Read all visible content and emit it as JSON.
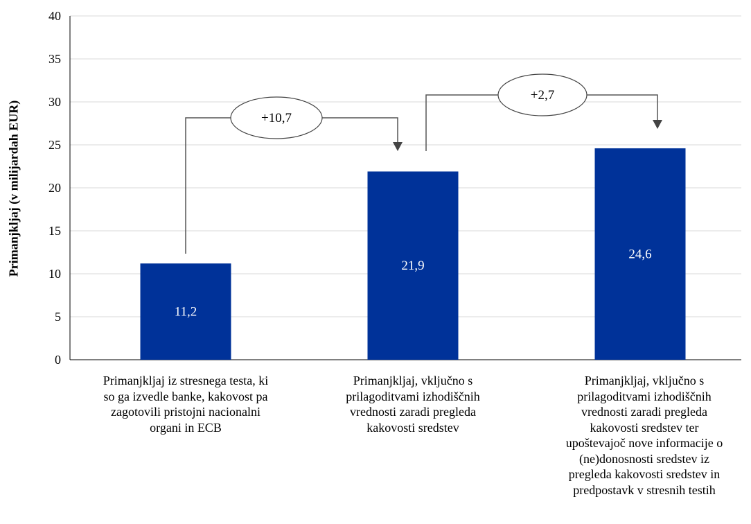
{
  "chart_data": {
    "type": "bar",
    "ylabel": "Primanjkljaj (v milijardah EUR)",
    "ylim": [
      0,
      40
    ],
    "yticks": [
      0,
      5,
      10,
      15,
      20,
      25,
      30,
      35,
      40
    ],
    "grid": true,
    "categories": [
      "Primanjkljaj iz stresnega testa, ki so ga izvedle banke, kakovost pa zagotovili pristojni nacionalni organi in ECB",
      "Primanjkljaj, vključno s prilagoditvami izhodiščnih vrednosti zaradi pregleda kakovosti sredstev",
      "Primanjkljaj, vključno s prilagoditvami izhodiščnih vrednosti zaradi pregleda kakovosti sredstev ter upoštevajoč nove informacije o (ne)donosnosti sredstev iz pregleda kakovosti sredstev in predpostavk v stresnih testih"
    ],
    "category_lines": [
      [
        "Primanjkljaj iz stresnega testa, ki",
        "so ga izvedle banke, kakovost pa",
        "zagotovili pristojni nacionalni",
        "organi in ECB"
      ],
      [
        "Primanjkljaj, vključno s",
        "prilagoditvami izhodiščnih",
        "vrednosti zaradi pregleda",
        "kakovosti sredstev"
      ],
      [
        "Primanjkljaj, vključno s",
        "prilagoditvami izhodiščnih",
        "vrednosti zaradi pregleda",
        "kakovosti sredstev ter",
        "upoštevajoč nove informacije o",
        "(ne)donosnosti sredstev iz",
        "pregleda kakovosti sredstev in",
        "predpostavk v stresnih testih"
      ]
    ],
    "values": [
      11.2,
      21.9,
      24.6
    ],
    "value_labels": [
      "11,2",
      "21,9",
      "24,6"
    ],
    "annotations": [
      {
        "label": "+10,7",
        "from": 0,
        "to": 1
      },
      {
        "label": "+2,7",
        "from": 1,
        "to": 2
      }
    ],
    "colors": {
      "bar": "#003299",
      "grid": "#d9d9d9",
      "axis": "#000000"
    }
  }
}
